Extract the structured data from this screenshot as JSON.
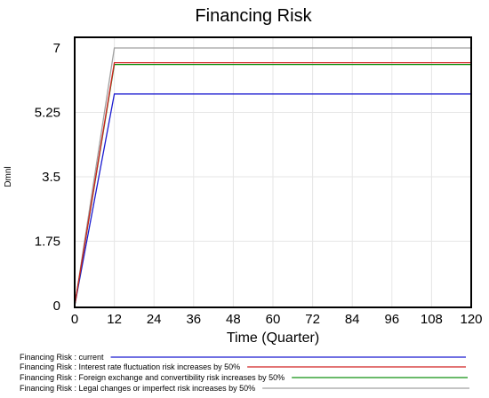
{
  "chart_data": {
    "type": "line",
    "title": "Financing Risk",
    "xlabel": "Time (Quarter)",
    "ylabel": "Dmnl",
    "xlim": [
      0,
      120
    ],
    "ylim": [
      0,
      7
    ],
    "x_ticks": [
      0,
      12,
      24,
      36,
      48,
      60,
      72,
      84,
      96,
      108,
      120
    ],
    "y_ticks": [
      0,
      1.75,
      3.5,
      5.25,
      7
    ],
    "y_tick_labels": [
      "0",
      "1.75",
      "3.5",
      "5.25",
      "7"
    ],
    "grid": true,
    "legend_position": "bottom",
    "x": [
      0,
      12,
      120
    ],
    "series": [
      {
        "name": "Financing Risk : current",
        "color": "#1a1ad0",
        "values": [
          0,
          5.75,
          5.75
        ]
      },
      {
        "name": "Financing Risk : Interest rate fluctuation risk increases by 50%",
        "color": "#d02020",
        "values": [
          0,
          6.6,
          6.6
        ]
      },
      {
        "name": "Financing Risk : Foreign exchange and convertibility risk increases by 50%",
        "color": "#109010",
        "values": [
          0,
          6.55,
          6.55
        ]
      },
      {
        "name": "Financing Risk : Legal changes or imperfect risk increases by 50%",
        "color": "#a0a0a0",
        "values": [
          0,
          7.0,
          7.0
        ]
      }
    ]
  }
}
